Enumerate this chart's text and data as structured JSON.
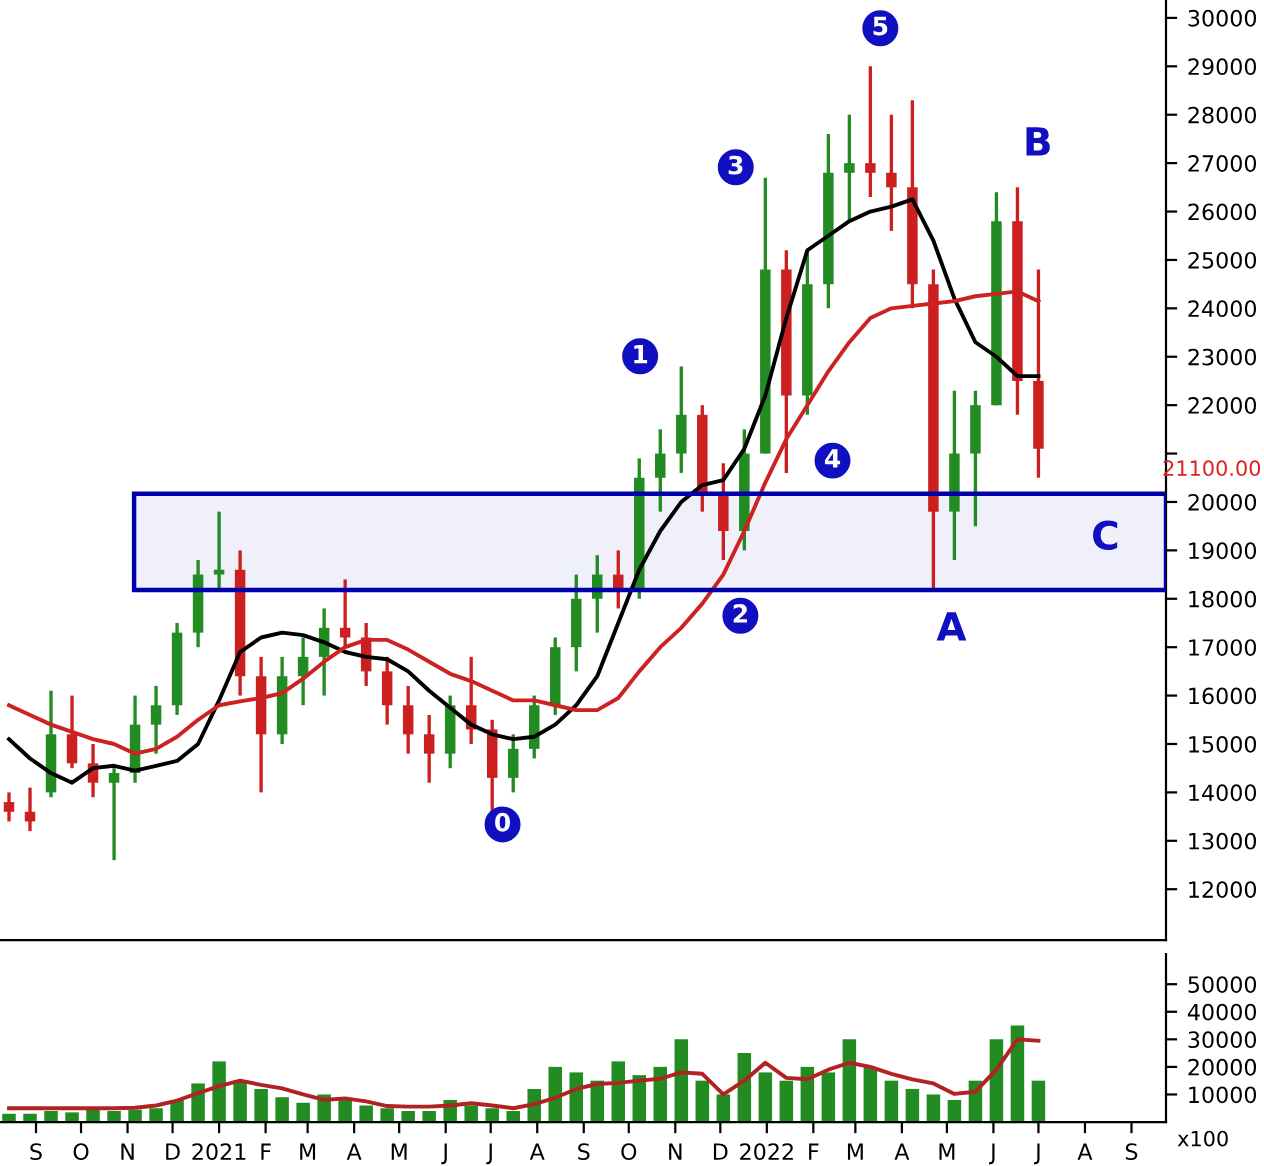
{
  "chart_data": [
    {
      "type": "candlestick",
      "x": [
        "2020-08-28",
        "2020-09-11",
        "2020-09-25",
        "2020-10-09",
        "2020-10-23",
        "2020-11-06",
        "2020-11-20",
        "2020-12-04",
        "2020-12-18",
        "2021-01-01",
        "2021-01-15",
        "2021-01-29",
        "2021-02-12",
        "2021-02-26",
        "2021-03-12",
        "2021-03-26",
        "2021-04-09",
        "2021-04-23",
        "2021-05-07",
        "2021-05-21",
        "2021-06-04",
        "2021-06-18",
        "2021-07-02",
        "2021-07-16",
        "2021-07-30",
        "2021-08-13",
        "2021-08-27",
        "2021-09-10",
        "2021-09-24",
        "2021-10-08",
        "2021-10-22",
        "2021-11-05",
        "2021-11-19",
        "2021-12-03",
        "2021-12-17",
        "2021-12-31",
        "2022-01-14",
        "2022-01-28",
        "2022-02-11",
        "2022-02-25",
        "2022-03-11",
        "2022-03-25",
        "2022-04-08",
        "2022-04-22",
        "2022-05-06",
        "2022-05-20",
        "2022-06-03",
        "2022-06-17",
        "2022-07-01",
        "2022-07-15"
      ],
      "ohlc": [
        [
          13800,
          14000,
          13400,
          13600
        ],
        [
          13600,
          14100,
          13200,
          13400
        ],
        [
          14000,
          16100,
          13900,
          15200
        ],
        [
          15200,
          16000,
          14500,
          14600
        ],
        [
          14600,
          15000,
          13900,
          14200
        ],
        [
          14200,
          14500,
          12600,
          14400
        ],
        [
          14400,
          16000,
          14200,
          15400
        ],
        [
          15400,
          16200,
          14800,
          15800
        ],
        [
          15800,
          17500,
          15600,
          17300
        ],
        [
          17300,
          18800,
          17000,
          18500
        ],
        [
          18500,
          19800,
          18200,
          18600
        ],
        [
          18600,
          19000,
          16000,
          16400
        ],
        [
          16400,
          16800,
          14000,
          15200
        ],
        [
          15200,
          16800,
          15000,
          16400
        ],
        [
          16400,
          17200,
          15800,
          16800
        ],
        [
          16800,
          17800,
          16000,
          17400
        ],
        [
          17400,
          18400,
          17000,
          17200
        ],
        [
          17200,
          17500,
          16200,
          16500
        ],
        [
          16500,
          16800,
          15400,
          15800
        ],
        [
          15800,
          16200,
          14800,
          15200
        ],
        [
          15200,
          15600,
          14200,
          14800
        ],
        [
          14800,
          16000,
          14500,
          15800
        ],
        [
          15800,
          16800,
          15000,
          15300
        ],
        [
          15300,
          15500,
          13600,
          14300
        ],
        [
          14300,
          15200,
          14000,
          14900
        ],
        [
          14900,
          16000,
          14700,
          15800
        ],
        [
          15800,
          17200,
          15600,
          17000
        ],
        [
          17000,
          18500,
          16500,
          18000
        ],
        [
          18000,
          18900,
          17300,
          18500
        ],
        [
          18500,
          19000,
          17800,
          18200
        ],
        [
          18200,
          20900,
          18000,
          20500
        ],
        [
          20500,
          21500,
          19800,
          21000
        ],
        [
          21000,
          22800,
          20600,
          21800
        ],
        [
          21800,
          22000,
          19800,
          20200
        ],
        [
          20200,
          20800,
          18800,
          19400
        ],
        [
          19400,
          21500,
          19000,
          21000
        ],
        [
          21000,
          26700,
          21000,
          24800
        ],
        [
          24800,
          25200,
          20600,
          22200
        ],
        [
          22200,
          25200,
          21800,
          24500
        ],
        [
          24500,
          27600,
          24000,
          26800
        ],
        [
          26800,
          28000,
          25800,
          27000
        ],
        [
          27000,
          29000,
          26300,
          26800
        ],
        [
          26800,
          28000,
          25600,
          26500
        ],
        [
          26500,
          28300,
          24000,
          24500
        ],
        [
          24500,
          24800,
          18200,
          19800
        ],
        [
          19800,
          22300,
          18800,
          21000
        ],
        [
          21000,
          22300,
          19500,
          22000
        ],
        [
          22000,
          26400,
          22000,
          25800
        ],
        [
          25800,
          26500,
          21800,
          22500
        ],
        [
          22500,
          24800,
          20500,
          21100
        ]
      ],
      "colors": [
        "#cc2020",
        "#cc2020",
        "#228b22",
        "#cc2020",
        "#cc2020",
        "#228b22",
        "#228b22",
        "#228b22",
        "#228b22",
        "#228b22",
        "#228b22",
        "#cc2020",
        "#cc2020",
        "#228b22",
        "#228b22",
        "#228b22",
        "#cc2020",
        "#cc2020",
        "#cc2020",
        "#cc2020",
        "#cc2020",
        "#228b22",
        "#cc2020",
        "#cc2020",
        "#228b22",
        "#228b22",
        "#228b22",
        "#228b22",
        "#228b22",
        "#cc2020",
        "#228b22",
        "#228b22",
        "#228b22",
        "#cc2020",
        "#cc2020",
        "#228b22",
        "#228b22",
        "#cc2020",
        "#228b22",
        "#228b22",
        "#228b22",
        "#cc2020",
        "#cc2020",
        "#cc2020",
        "#cc2020",
        "#228b22",
        "#228b22",
        "#228b22",
        "#cc2020",
        "#cc2020"
      ],
      "series": [
        {
          "type": "line",
          "color": "#000000",
          "values": [
            15100,
            14700,
            14400,
            14200,
            14500,
            14550,
            14450,
            14550,
            14650,
            15000,
            15900,
            16900,
            17200,
            17300,
            17250,
            17100,
            16900,
            16800,
            16750,
            16500,
            16100,
            15750,
            15400,
            15200,
            15100,
            15150,
            15400,
            15800,
            16400,
            17500,
            18600,
            19400,
            20000,
            20350,
            20450,
            21100,
            22200,
            23800,
            25200,
            25500,
            25800,
            26000,
            26100,
            26250,
            25400,
            24200,
            23300,
            23000,
            22600,
            22600
          ]
        },
        {
          "type": "line",
          "color": "#cc2222",
          "values": [
            15800,
            15600,
            15400,
            15250,
            15100,
            15000,
            14800,
            14900,
            15150,
            15500,
            15800,
            15880,
            15950,
            16050,
            16350,
            16700,
            17000,
            17150,
            17150,
            16950,
            16700,
            16450,
            16300,
            16100,
            15900,
            15900,
            15800,
            15700,
            15700,
            15950,
            16500,
            17000,
            17400,
            17900,
            18500,
            19400,
            20400,
            21300,
            22000,
            22700,
            23300,
            23800,
            24000,
            24050,
            24100,
            24150,
            24250,
            24300,
            24350,
            24150
          ]
        }
      ],
      "xlim": [
        "2020-08-22",
        "2022-10-08"
      ],
      "ylim": [
        10950,
        30370
      ],
      "yticks": [
        12000,
        13000,
        14000,
        15000,
        16000,
        17000,
        18000,
        19000,
        20000,
        {
          "value": 21000,
          "label": null
        },
        22000,
        23000,
        24000,
        25000,
        26000,
        27000,
        28000,
        29000,
        30000
      ],
      "tick_labels": "y",
      "grid": false,
      "bands": [
        {
          "axis": "y",
          "from": 18180,
          "to": 20170,
          "color": "#0000aa"
        }
      ],
      "annotations": [
        "0",
        "1",
        "2",
        "3",
        "4",
        "5",
        "A",
        "B",
        "C",
        "21100.00"
      ]
    },
    {
      "type": "bar",
      "x": [
        "2020-08-28",
        "2020-09-11",
        "2020-09-25",
        "2020-10-09",
        "2020-10-23",
        "2020-11-06",
        "2020-11-20",
        "2020-12-04",
        "2020-12-18",
        "2021-01-01",
        "2021-01-15",
        "2021-01-29",
        "2021-02-12",
        "2021-02-26",
        "2021-03-12",
        "2021-03-26",
        "2021-04-09",
        "2021-04-23",
        "2021-05-07",
        "2021-05-21",
        "2021-06-04",
        "2021-06-18",
        "2021-07-02",
        "2021-07-16",
        "2021-07-30",
        "2021-08-13",
        "2021-08-27",
        "2021-09-10",
        "2021-09-24",
        "2021-10-08",
        "2021-10-22",
        "2021-11-05",
        "2021-11-19",
        "2021-12-03",
        "2021-12-17",
        "2021-12-31",
        "2022-01-14",
        "2022-01-28",
        "2022-02-11",
        "2022-02-25",
        "2022-03-11",
        "2022-03-25",
        "2022-04-08",
        "2022-04-22",
        "2022-05-06",
        "2022-05-20",
        "2022-06-03",
        "2022-06-17",
        "2022-07-01",
        "2022-07-15"
      ],
      "series": [
        {
          "type": "bar",
          "color": "#228b22",
          "values": [
            3000,
            3000,
            4000,
            3500,
            5000,
            4000,
            4500,
            5000,
            8000,
            14000,
            22000,
            15000,
            12000,
            9000,
            7000,
            10000,
            8000,
            6000,
            5000,
            4000,
            4000,
            8000,
            6000,
            5000,
            4000,
            12000,
            20000,
            18000,
            15000,
            22000,
            17000,
            20000,
            30000,
            15000,
            10000,
            25000,
            18000,
            15000,
            20000,
            18000,
            30000,
            20000,
            15000,
            12000,
            10000,
            8000,
            15000,
            30000,
            35000,
            15000
          ]
        },
        {
          "type": "line",
          "color": "#b22222",
          "values": [
            5000,
            5000,
            5000,
            5000,
            5000,
            5000,
            5200,
            6000,
            7800,
            10500,
            13000,
            15000,
            13500,
            12200,
            10000,
            8000,
            8600,
            7500,
            5800,
            5600,
            5600,
            6000,
            6800,
            6000,
            5000,
            6500,
            8800,
            12000,
            13800,
            14200,
            15000,
            15700,
            18000,
            17500,
            10000,
            15000,
            21500,
            16000,
            15500,
            19000,
            21500,
            20000,
            17500,
            15500,
            14000,
            10200,
            11000,
            19000,
            30000,
            29500
          ]
        }
      ],
      "xlim": [
        "2020-08-22",
        "2022-10-08"
      ],
      "xticks": [
        {
          "value": "2020-09-15",
          "label": "S"
        },
        {
          "value": "2020-10-15",
          "label": "O"
        },
        {
          "value": "2020-11-15",
          "label": "N"
        },
        {
          "value": "2020-12-15",
          "label": "D"
        },
        {
          "value": "2021-01-15",
          "label": "2021"
        },
        {
          "value": "2021-02-15",
          "label": "F"
        },
        {
          "value": "2021-03-15",
          "label": "M"
        },
        {
          "value": "2021-04-15",
          "label": "A"
        },
        {
          "value": "2021-05-15",
          "label": "M"
        },
        {
          "value": "2021-06-15",
          "label": "J"
        },
        {
          "value": "2021-07-15",
          "label": "J"
        },
        {
          "value": "2021-08-15",
          "label": "A"
        },
        {
          "value": "2021-09-15",
          "label": "S"
        },
        {
          "value": "2021-10-15",
          "label": "O"
        },
        {
          "value": "2021-11-15",
          "label": "N"
        },
        {
          "value": "2021-12-15",
          "label": "D"
        },
        {
          "value": "2022-01-15",
          "label": "2022"
        },
        {
          "value": "2022-02-15",
          "label": "F"
        },
        {
          "value": "2022-03-15",
          "label": "M"
        },
        {
          "value": "2022-04-15",
          "label": "A"
        },
        {
          "value": "2022-05-15",
          "label": "M"
        },
        {
          "value": "2022-06-15",
          "label": "J"
        },
        {
          "value": "2022-07-15",
          "label": "J"
        },
        {
          "value": "2022-08-15",
          "label": "A"
        },
        {
          "value": "2022-09-15",
          "label": "S"
        }
      ],
      "ylim": [
        0,
        60900
      ],
      "yticks": [
        10000,
        20000,
        30000,
        40000,
        50000
      ],
      "ylabel": "x100",
      "grid": false
    }
  ]
}
